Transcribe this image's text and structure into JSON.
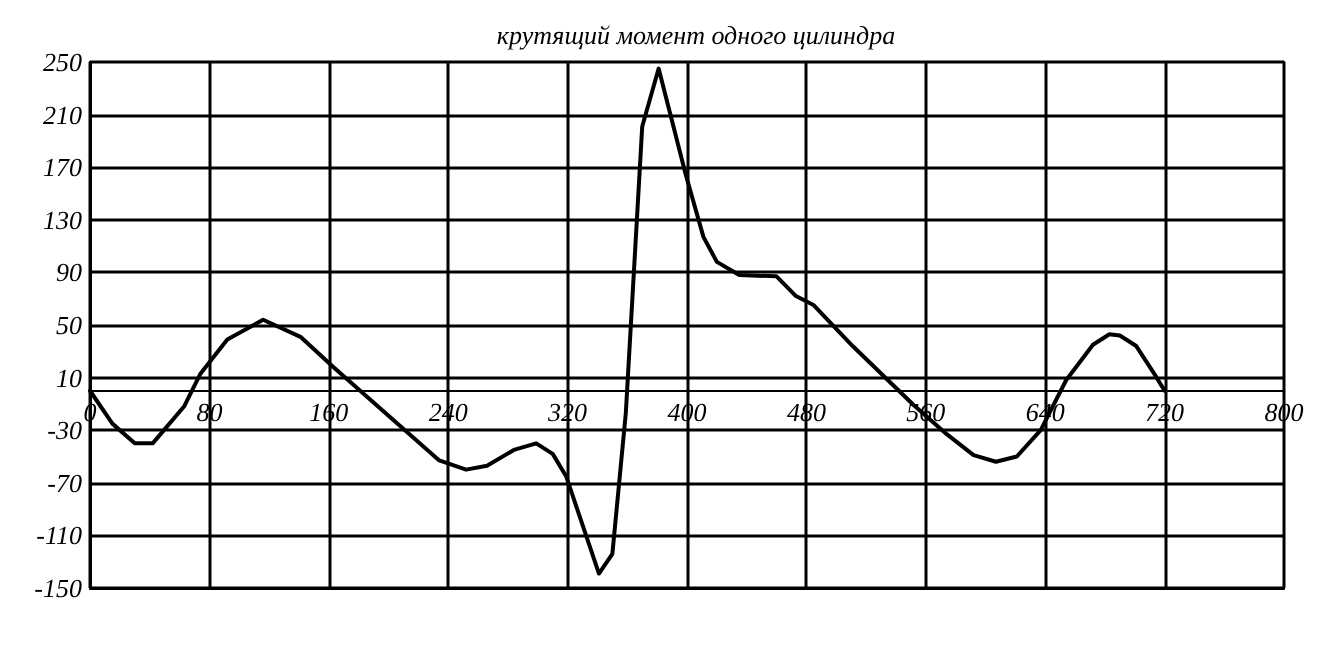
{
  "chart_data": {
    "type": "line",
    "title": "крутящий момент одного цилиндра",
    "x": [
      0,
      15,
      30,
      42,
      63,
      74,
      92,
      116,
      141,
      163,
      208,
      234,
      252,
      266,
      284,
      299,
      310,
      319,
      341,
      350,
      359,
      370,
      381,
      399,
      411,
      420,
      435,
      460,
      473,
      485,
      511,
      552,
      574,
      592,
      607,
      621,
      637,
      654,
      672,
      683,
      690,
      701,
      713,
      720
    ],
    "series": [
      {
        "color": "#000000",
        "values": [
          0,
          -25,
          -40,
          -40,
          -12,
          13,
          39,
          54,
          41,
          18,
          -27,
          -53,
          -60,
          -57,
          -45,
          -40,
          -48,
          -65,
          -139,
          -124,
          -17,
          201,
          245,
          165,
          117,
          98,
          88,
          87,
          72,
          65,
          34,
          -11,
          -33,
          -49,
          -54,
          -50,
          -30,
          8,
          35,
          43,
          42,
          34,
          13,
          0
        ]
      }
    ],
    "xlim": [
      0,
      800
    ],
    "xticks": [
      0,
      80,
      160,
      240,
      320,
      400,
      480,
      560,
      640,
      720,
      800
    ],
    "ylim": [
      -150,
      250
    ],
    "yticks": [
      -150,
      -110,
      -70,
      -30,
      10,
      50,
      90,
      130,
      170,
      210,
      250
    ],
    "grid": true,
    "marker": "none",
    "line_style": "solid"
  }
}
